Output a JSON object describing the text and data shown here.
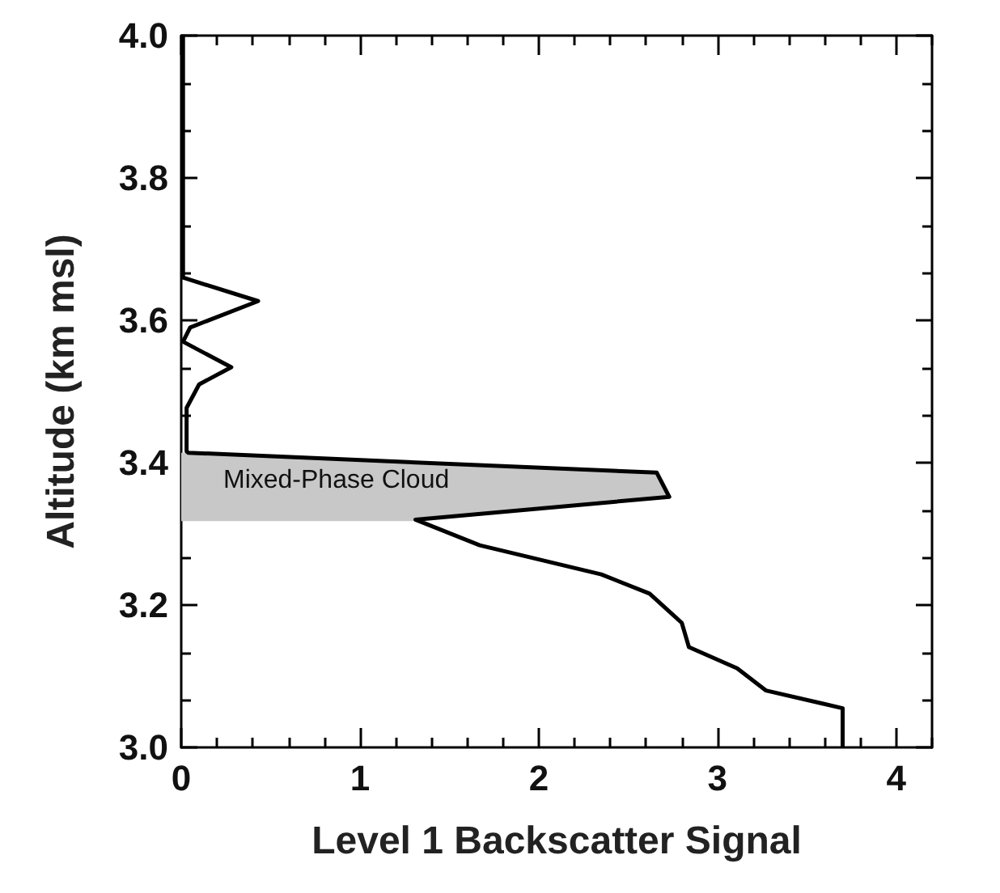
{
  "chart_data": {
    "type": "line",
    "xlabel": "Level 1 Backscatter Signal",
    "ylabel": "Altitude (km msl)",
    "series": [
      {
        "type": "area",
        "color": "#c8c8c8",
        "x": [
          0,
          0.04,
          2.66,
          2.73,
          1.31,
          0
        ],
        "values": [
          3.414,
          3.414,
          3.386,
          3.352,
          3.318,
          3.318
        ]
      },
      {
        "type": "line",
        "color": "#000000",
        "x": [
          0.01,
          0.01,
          0.43,
          0.05,
          0.01,
          0.28,
          0.1,
          0.03,
          0.03,
          0.04,
          2.66,
          2.73,
          1.31,
          1.67,
          2.35,
          2.62,
          2.8,
          2.84,
          3.11,
          3.27,
          3.7,
          3.7
        ],
        "values": [
          4.0,
          3.66,
          3.627,
          3.59,
          3.57,
          3.534,
          3.51,
          3.477,
          3.416,
          3.414,
          3.386,
          3.352,
          3.32,
          3.284,
          3.243,
          3.216,
          3.175,
          3.141,
          3.111,
          3.08,
          3.055,
          3.0
        ]
      }
    ],
    "annotations": [
      "Mixed-Phase Cloud"
    ],
    "xlim": [
      0,
      4.2
    ],
    "xticks": [
      0,
      1,
      2,
      3,
      4
    ],
    "ylim": [
      3.0,
      4.0
    ],
    "yticks": [
      {
        "value": 3.0,
        "label": "3.0"
      },
      3.2,
      3.4,
      3.6,
      3.8,
      {
        "value": 4.0,
        "label": "4.0"
      }
    ],
    "grid": false,
    "marker": "none",
    "line_style": "solid"
  }
}
